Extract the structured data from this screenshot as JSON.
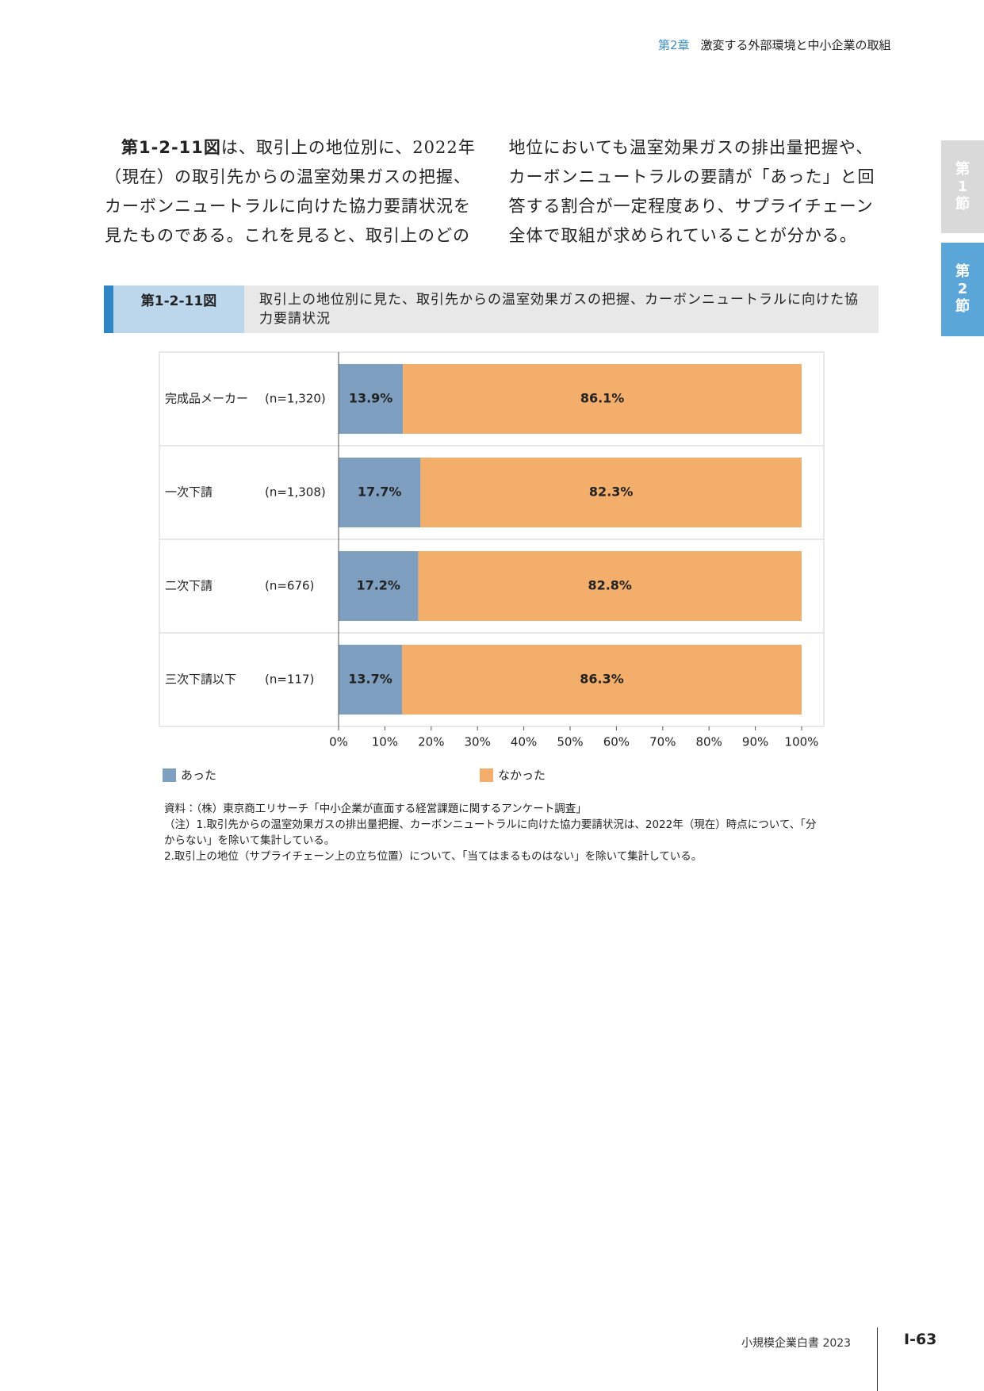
{
  "header": {
    "chapter": "第2章",
    "title": "激変する外部環境と中小企業の取組"
  },
  "side_tabs": [
    "第1節",
    "第2節"
  ],
  "body": {
    "figure_ref": "第1-2-11図",
    "text": "は、取引上の地位別に、2022年（現在）の取引先からの温室効果ガスの把握、カーボンニュートラルに向けた協力要請状況を見たものである。これを見ると、取引上のどの地位においても温室効果ガスの排出量把握や、カーボンニュートラルの要請が「あった」と回答する割合が一定程度あり、サプライチェーン全体で取組が求められていることが分かる。"
  },
  "figure": {
    "number": "第1-2-11図",
    "title": "取引上の地位別に見た、取引先からの温室効果ガスの把握、カーボンニュートラルに向けた協力要請状況"
  },
  "chart_data": {
    "type": "stacked-bar-horizontal",
    "categories": [
      "完成品メーカー",
      "一次下請",
      "二次下請",
      "三次下請以下"
    ],
    "sample_sizes": [
      "(n=1,320)",
      "(n=1,308)",
      "(n=676)",
      "(n=117)"
    ],
    "series": [
      {
        "name": "あった",
        "color": "#7f9fc0",
        "values": [
          13.9,
          17.7,
          17.2,
          13.7
        ],
        "value_labels": [
          "13.9%",
          "17.7%",
          "17.2%",
          "13.7%"
        ]
      },
      {
        "name": "なかった",
        "color": "#f4ae6b",
        "values": [
          86.1,
          82.3,
          82.8,
          86.3
        ],
        "value_labels": [
          "86.1%",
          "82.3%",
          "82.8%",
          "86.3%"
        ]
      }
    ],
    "xlim": [
      0,
      100
    ],
    "xticks": [
      {
        "value": 0,
        "label": "0%"
      },
      {
        "value": 10,
        "label": "10%"
      },
      {
        "value": 20,
        "label": "20%"
      },
      {
        "value": 30,
        "label": "30%"
      },
      {
        "value": 40,
        "label": "40%"
      },
      {
        "value": 50,
        "label": "50%"
      },
      {
        "value": 60,
        "label": "60%"
      },
      {
        "value": 70,
        "label": "70%"
      },
      {
        "value": 80,
        "label": "80%"
      },
      {
        "value": 90,
        "label": "90%"
      },
      {
        "value": 100,
        "label": "100%"
      }
    ],
    "legend": "bottom"
  },
  "notes": [
    "資料：（株）東京商工リサーチ「中小企業が直面する経営課題に関するアンケート調査」",
    "（注）1.取引先からの温室効果ガスの排出量把握、カーボンニュートラルに向けた協力要請状況は、2022年（現在）時点について、「分からない」を除いて集計している。",
    "2.取引上の地位（サプライチェーン上の立ち位置）について、「当てはまるものはない」を除いて集計している。"
  ],
  "footer": {
    "book": "小規模企業白書",
    "year": "2023",
    "page": "I-63"
  }
}
